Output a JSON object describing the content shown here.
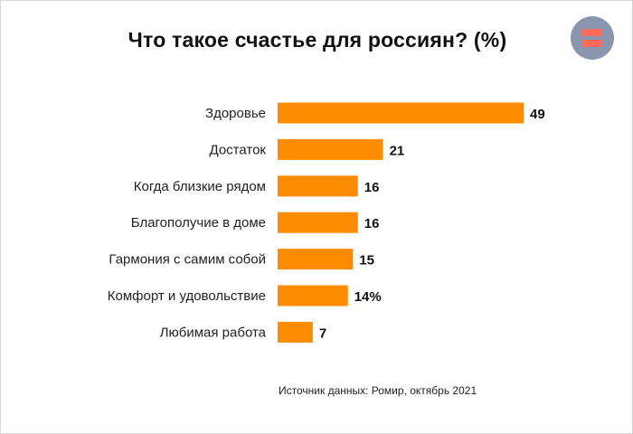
{
  "chart_data": {
    "type": "bar",
    "orientation": "horizontal",
    "title": "Что такое счастье для россиян? (%)",
    "categories": [
      "Здоровье",
      "Достаток",
      "Когда близкие рядом",
      "Благополучие в доме",
      "Гармония с самим собой",
      "Комфорт и удовольствие",
      "Любимая работа"
    ],
    "values": [
      49,
      21,
      16,
      16,
      15,
      14,
      7
    ],
    "value_labels": [
      "49",
      "21",
      "16",
      "16",
      "15",
      "14%",
      "7"
    ],
    "xlim": [
      0,
      50
    ],
    "grid": false,
    "legend": "none",
    "bar_color": "#ff8c00"
  },
  "source": "Источник данных: Ромир, октябрь 2021",
  "logo": {
    "icon": "equals-logo-icon",
    "circle_color": "#8a96ad",
    "stripe_color": "#ff6a5c"
  }
}
